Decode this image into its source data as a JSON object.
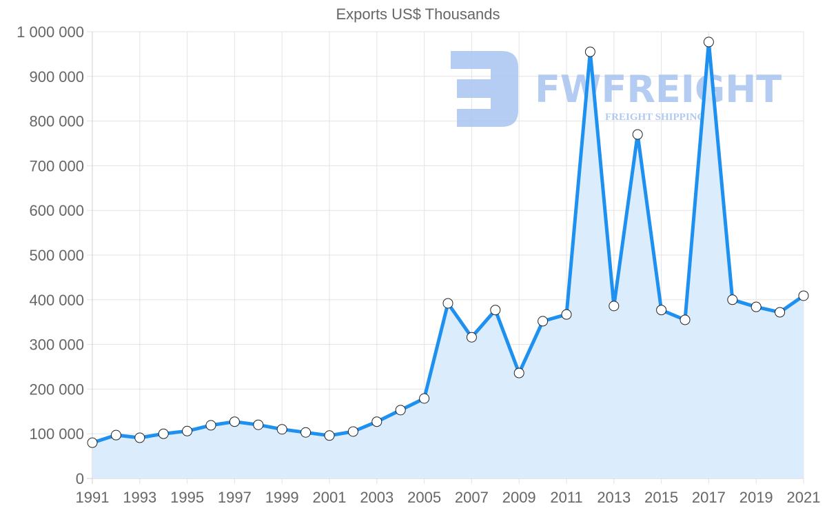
{
  "chart_data": {
    "type": "line",
    "title": "Exports US$ Thousands",
    "xlabel": "",
    "ylabel": "",
    "ylim": [
      0,
      1000000
    ],
    "grid": true,
    "legend": "none",
    "filled_area": true,
    "x": [
      1991,
      1992,
      1993,
      1994,
      1995,
      1996,
      1997,
      1998,
      1999,
      2000,
      2001,
      2002,
      2003,
      2004,
      2005,
      2006,
      2007,
      2008,
      2009,
      2010,
      2011,
      2012,
      2013,
      2014,
      2015,
      2016,
      2017,
      2018,
      2019,
      2020,
      2021
    ],
    "series": [
      {
        "name": "Exports US$ Thousands",
        "color": "#1e90f0",
        "fill": "#d9ebfc",
        "values": [
          80000,
          97000,
          91000,
          100000,
          106000,
          119000,
          127000,
          120000,
          110000,
          103000,
          96000,
          105000,
          127000,
          153000,
          179000,
          392000,
          316000,
          377000,
          236000,
          352000,
          367000,
          955000,
          386000,
          770000,
          377000,
          355000,
          977000,
          400000,
          384000,
          372000,
          409000
        ]
      }
    ],
    "y_ticks": [
      "0",
      "100 000",
      "200 000",
      "300 000",
      "400 000",
      "500 000",
      "600 000",
      "700 000",
      "800 000",
      "900 000",
      "1 000 000"
    ],
    "x_ticks": [
      "1991",
      "1993",
      "1995",
      "1997",
      "1999",
      "2001",
      "2003",
      "2005",
      "2007",
      "2009",
      "2011",
      "2013",
      "2015",
      "2017",
      "2019",
      "2021"
    ]
  },
  "watermark": {
    "brand": "FWFREIGHT",
    "tagline": "FREIGHT SHIPPING",
    "color": "#a8c4f0"
  }
}
